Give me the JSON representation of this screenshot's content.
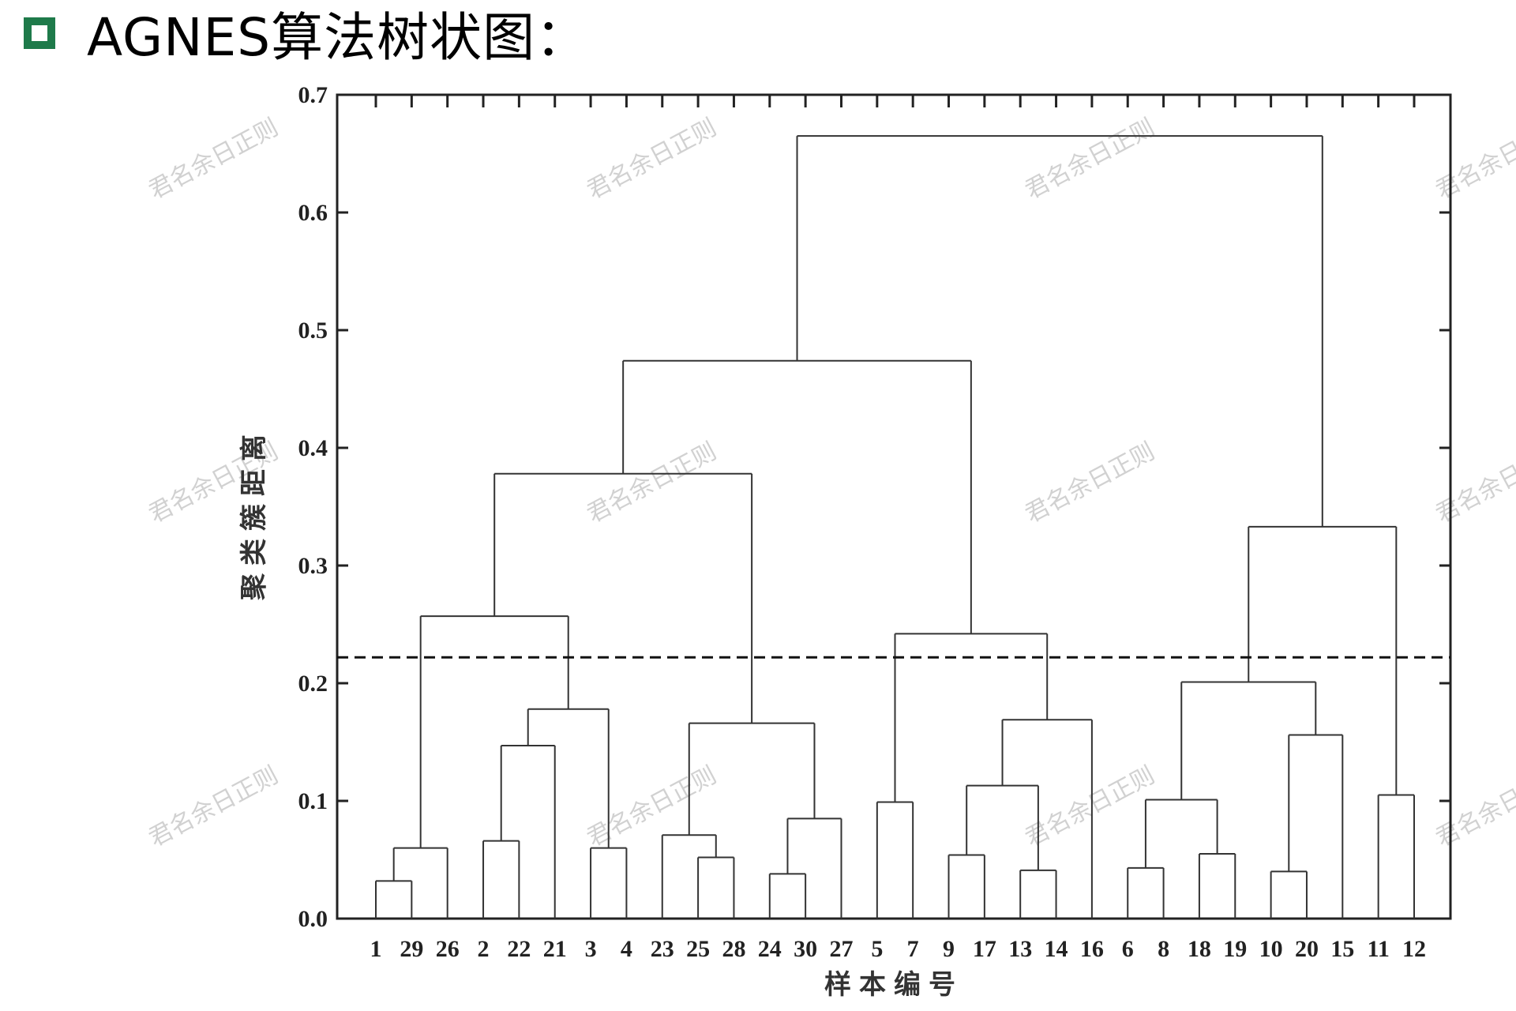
{
  "header": {
    "title": "AGNES算法树状图：",
    "bullet_color": "#1e7a4a"
  },
  "watermark": {
    "text": "君名余日正则"
  },
  "chart_data": {
    "type": "dendrogram",
    "ylabel": "聚类簇距离",
    "xlabel": "样本编号",
    "ylim": [
      0,
      0.7
    ],
    "yticks": [
      "0.0",
      "0.1",
      "0.2",
      "0.3",
      "0.4",
      "0.5",
      "0.6",
      "0.7"
    ],
    "cut_threshold": 0.222,
    "leaves": [
      "1",
      "29",
      "26",
      "2",
      "22",
      "21",
      "3",
      "4",
      "23",
      "25",
      "28",
      "24",
      "30",
      "27",
      "5",
      "7",
      "9",
      "17",
      "13",
      "14",
      "16",
      "6",
      "8",
      "18",
      "19",
      "10",
      "20",
      "15",
      "11",
      "12"
    ],
    "merges": [
      {
        "a": "1",
        "b": "29",
        "height": 0.032
      },
      {
        "a": "(1,29)",
        "b": "26",
        "height": 0.06
      },
      {
        "a": "2",
        "b": "22",
        "height": 0.066
      },
      {
        "a": "(2,22)",
        "b": "21",
        "height": 0.147
      },
      {
        "a": "3",
        "b": "4",
        "height": 0.06
      },
      {
        "a": "(2,22,21)",
        "b": "(3,4)",
        "height": 0.178
      },
      {
        "a": "(1,29,26)",
        "b": "(2,22,21,3,4)",
        "height": 0.257
      },
      {
        "a": "25",
        "b": "28",
        "height": 0.052
      },
      {
        "a": "23",
        "b": "(25,28)",
        "height": 0.071
      },
      {
        "a": "24",
        "b": "30",
        "height": 0.038
      },
      {
        "a": "(24,30)",
        "b": "27",
        "height": 0.085
      },
      {
        "a": "(23,25,28)",
        "b": "(24,30,27)",
        "height": 0.166
      },
      {
        "a": "(1..4)",
        "b": "(23..27)",
        "height": 0.378
      },
      {
        "a": "5",
        "b": "7",
        "height": 0.099
      },
      {
        "a": "9",
        "b": "17",
        "height": 0.054
      },
      {
        "a": "13",
        "b": "14",
        "height": 0.041
      },
      {
        "a": "(9,17)",
        "b": "(13,14)",
        "height": 0.113
      },
      {
        "a": "(9,17,13,14)",
        "b": "16",
        "height": 0.169
      },
      {
        "a": "(5,7)",
        "b": "(9..16)",
        "height": 0.242
      },
      {
        "a": "(1..27)",
        "b": "(5..16)",
        "height": 0.474
      },
      {
        "a": "6",
        "b": "8",
        "height": 0.043
      },
      {
        "a": "18",
        "b": "19",
        "height": 0.055
      },
      {
        "a": "(6,8)",
        "b": "(18,19)",
        "height": 0.101
      },
      {
        "a": "10",
        "b": "20",
        "height": 0.04
      },
      {
        "a": "(10,20)",
        "b": "15",
        "height": 0.156
      },
      {
        "a": "(6,8,18,19)",
        "b": "(10,20,15)",
        "height": 0.201
      },
      {
        "a": "11",
        "b": "12",
        "height": 0.105
      },
      {
        "a": "(6..15)",
        "b": "(11,12)",
        "height": 0.333
      },
      {
        "a": "(1..16)",
        "b": "(6..12)",
        "height": 0.665
      }
    ]
  }
}
